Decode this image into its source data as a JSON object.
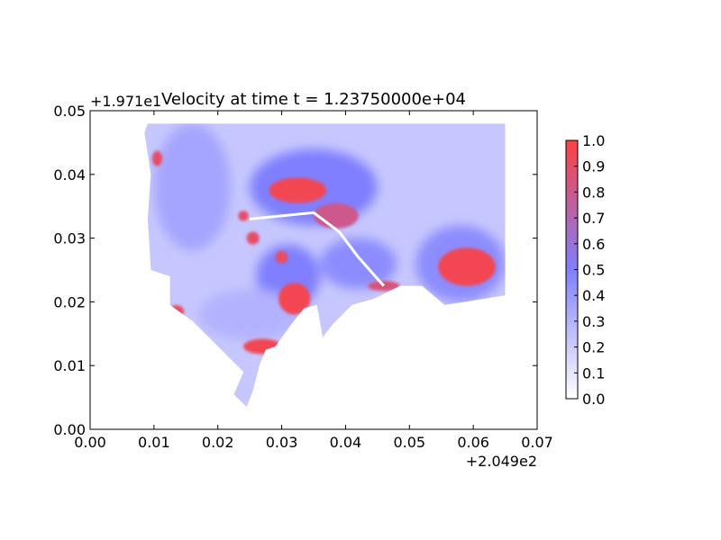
{
  "chart_data": {
    "type": "heatmap",
    "title": "Velocity at time t = 1.23750000e+04",
    "xlabel": "",
    "ylabel": "",
    "x_offset_label": "+2.049e2",
    "y_offset_label": "+1.971e1",
    "xlim": [
      0.0,
      0.07
    ],
    "ylim": [
      0.0,
      0.05
    ],
    "x_ticks": [
      "0.00",
      "0.01",
      "0.02",
      "0.03",
      "0.04",
      "0.05",
      "0.06",
      "0.07"
    ],
    "y_ticks": [
      "0.00",
      "0.01",
      "0.02",
      "0.03",
      "0.04",
      "0.05"
    ],
    "colorbar": {
      "range": [
        0.0,
        1.0
      ],
      "ticks": [
        "0.0",
        "0.1",
        "0.2",
        "0.3",
        "0.4",
        "0.5",
        "0.6",
        "0.7",
        "0.8",
        "0.9",
        "1.0"
      ],
      "colors": [
        "#ffffff",
        "#7f7fff",
        "#ff4040"
      ]
    },
    "domain_outline": [
      [
        0.0085,
        0.0465
      ],
      [
        0.009,
        0.048
      ],
      [
        0.0145,
        0.048
      ],
      [
        0.065,
        0.048
      ],
      [
        0.065,
        0.021
      ],
      [
        0.0555,
        0.0195
      ],
      [
        0.052,
        0.0225
      ],
      [
        0.0485,
        0.0225
      ],
      [
        0.0445,
        0.0205
      ],
      [
        0.041,
        0.0195
      ],
      [
        0.038,
        0.0165
      ],
      [
        0.0365,
        0.0145
      ],
      [
        0.0365,
        0.014
      ],
      [
        0.0355,
        0.0195
      ],
      [
        0.0335,
        0.019
      ],
      [
        0.0315,
        0.0165
      ],
      [
        0.029,
        0.013
      ],
      [
        0.0275,
        0.0125
      ],
      [
        0.0265,
        0.01
      ],
      [
        0.0255,
        0.006
      ],
      [
        0.0245,
        0.0035
      ],
      [
        0.0225,
        0.0055
      ],
      [
        0.024,
        0.009
      ],
      [
        0.0205,
        0.0125
      ],
      [
        0.016,
        0.017
      ],
      [
        0.0125,
        0.0195
      ],
      [
        0.0125,
        0.024
      ],
      [
        0.0095,
        0.025
      ],
      [
        0.009,
        0.033
      ],
      [
        0.0095,
        0.04
      ]
    ],
    "high_velocity_regions": [
      {
        "x": 0.0325,
        "y": 0.0375,
        "rx": 0.0045,
        "ry": 0.002,
        "value": 0.95
      },
      {
        "x": 0.032,
        "y": 0.0205,
        "rx": 0.0025,
        "ry": 0.0025,
        "value": 0.95
      },
      {
        "x": 0.027,
        "y": 0.013,
        "rx": 0.003,
        "ry": 0.0012,
        "value": 0.95
      },
      {
        "x": 0.059,
        "y": 0.0255,
        "rx": 0.0045,
        "ry": 0.003,
        "value": 0.95
      },
      {
        "x": 0.024,
        "y": 0.0335,
        "rx": 0.0008,
        "ry": 0.0008,
        "value": 0.9
      },
      {
        "x": 0.0255,
        "y": 0.03,
        "rx": 0.001,
        "ry": 0.001,
        "value": 0.9
      },
      {
        "x": 0.03,
        "y": 0.027,
        "rx": 0.001,
        "ry": 0.001,
        "value": 0.9
      },
      {
        "x": 0.0105,
        "y": 0.0425,
        "rx": 0.0008,
        "ry": 0.0012,
        "value": 0.9
      },
      {
        "x": 0.0135,
        "y": 0.0185,
        "rx": 0.0012,
        "ry": 0.001,
        "value": 0.9
      },
      {
        "x": 0.046,
        "y": 0.0225,
        "rx": 0.0025,
        "ry": 0.0008,
        "value": 0.85
      },
      {
        "x": 0.0385,
        "y": 0.0335,
        "rx": 0.0035,
        "ry": 0.002,
        "value": 0.8
      }
    ],
    "medium_velocity_regions": [
      {
        "x": 0.035,
        "y": 0.038,
        "rx": 0.01,
        "ry": 0.006,
        "value": 0.5
      },
      {
        "x": 0.016,
        "y": 0.038,
        "rx": 0.006,
        "ry": 0.01,
        "value": 0.35
      },
      {
        "x": 0.031,
        "y": 0.024,
        "rx": 0.005,
        "ry": 0.005,
        "value": 0.5
      },
      {
        "x": 0.042,
        "y": 0.026,
        "rx": 0.006,
        "ry": 0.004,
        "value": 0.45
      },
      {
        "x": 0.025,
        "y": 0.018,
        "rx": 0.008,
        "ry": 0.004,
        "value": 0.3
      },
      {
        "x": 0.058,
        "y": 0.026,
        "rx": 0.007,
        "ry": 0.006,
        "value": 0.45
      }
    ],
    "river_path": [
      [
        0.025,
        0.033
      ],
      [
        0.035,
        0.034
      ],
      [
        0.039,
        0.031
      ],
      [
        0.042,
        0.027
      ],
      [
        0.046,
        0.0225
      ]
    ],
    "grid": false
  }
}
